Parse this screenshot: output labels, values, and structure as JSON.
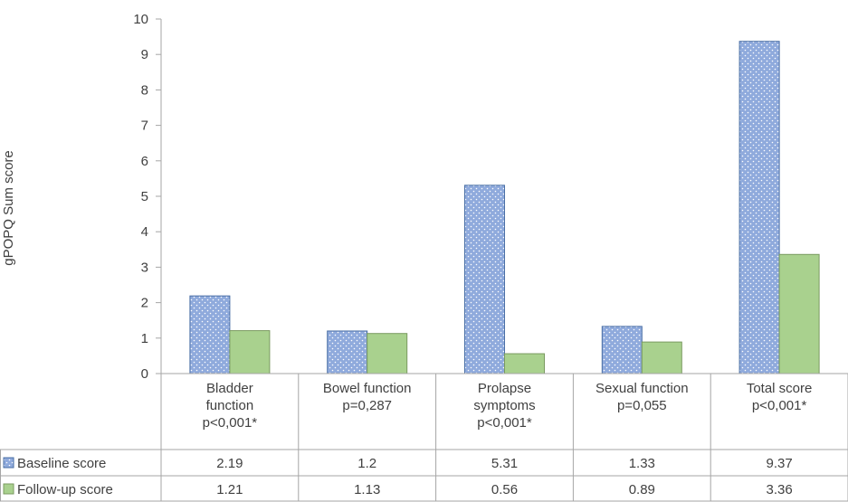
{
  "chart_data": {
    "type": "bar",
    "ylabel": "gPOPQ Sum score",
    "ylim": [
      0,
      10
    ],
    "yticks": [
      0,
      1,
      2,
      3,
      4,
      5,
      6,
      7,
      8,
      9,
      10
    ],
    "grid": false,
    "legend": "data-table-left",
    "categories": [
      [
        "Bladder",
        "function",
        "p<0,001*"
      ],
      [
        "Bowel function",
        "p=0,287"
      ],
      [
        "Prolapse",
        "symptoms",
        "p<0,001*"
      ],
      [
        "Sexual function",
        "p=0,055"
      ],
      [
        "Total score",
        "p<0,001*"
      ]
    ],
    "series": [
      {
        "name": "Baseline score",
        "values": [
          2.19,
          1.2,
          5.31,
          1.33,
          9.37
        ],
        "color": "#8faadc",
        "pattern": "dotted"
      },
      {
        "name": "Follow-up score",
        "values": [
          1.21,
          1.13,
          0.56,
          0.89,
          3.36
        ],
        "color": "#a9d18e",
        "pattern": "solid"
      }
    ],
    "table_values": [
      [
        "2.19",
        "1.2",
        "5.31",
        "1.33",
        "9.37"
      ],
      [
        "1.21",
        "1.13",
        "0.56",
        "0.89",
        "3.36"
      ]
    ]
  }
}
